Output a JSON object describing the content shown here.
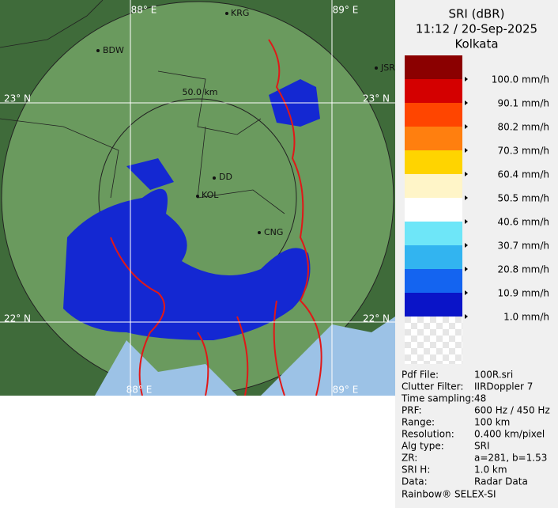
{
  "map": {
    "labels": {
      "lon_left_top": "88° E",
      "lon_right_top": "89° E",
      "lat_top_left": "23° N",
      "lat_top_right": "23° N",
      "lat_bottom_left": "22° N",
      "lat_bottom_right": "22° N",
      "lon_left_bottom": "88° E",
      "lon_right_bottom": "89° E",
      "ring": "50.0 km"
    },
    "cities": {
      "krg": "KRG",
      "bdw": "BDW",
      "jsr": "JSR",
      "dd": "DD",
      "kol": "KOL",
      "cng": "CNG"
    }
  },
  "legend": {
    "title": "SRI (dBR)",
    "time": "11:12 / 20-Sep-2025",
    "station": "Kolkata",
    "items": [
      {
        "label": "100.0 mm/h",
        "color": "#8b0000"
      },
      {
        "label": "90.1 mm/h",
        "color": "#d40000"
      },
      {
        "label": "80.2 mm/h",
        "color": "#ff4500"
      },
      {
        "label": "70.3 mm/h",
        "color": "#ff7f0f"
      },
      {
        "label": "60.4 mm/h",
        "color": "#ffd400"
      },
      {
        "label": "50.5 mm/h",
        "color": "#fff5c8"
      },
      {
        "label": "40.6 mm/h",
        "color": "#ffffff"
      },
      {
        "label": "30.7 mm/h",
        "color": "#6ee6f8"
      },
      {
        "label": "20.8 mm/h",
        "color": "#32b4f0"
      },
      {
        "label": "10.9 mm/h",
        "color": "#1464f0"
      },
      {
        "label": "1.0 mm/h",
        "color": "#0a14c8"
      }
    ]
  },
  "info": {
    "rows": [
      [
        "Pdf File:",
        "100R.sri"
      ],
      [
        "Clutter Filter:",
        "IIRDoppler 7"
      ],
      [
        "Time sampling:",
        "48"
      ],
      [
        "PRF:",
        "600 Hz / 450 Hz"
      ],
      [
        "Range:",
        "100 km"
      ],
      [
        "Resolution:",
        "0.400 km/pixel"
      ],
      [
        "Alg type:",
        "SRI"
      ],
      [
        "ZR:",
        "a=281, b=1.53"
      ],
      [
        "SRI H:",
        "1.0 km"
      ],
      [
        "Data:",
        "Radar Data"
      ]
    ],
    "footer": "Rainbow® SELEX-SI"
  }
}
